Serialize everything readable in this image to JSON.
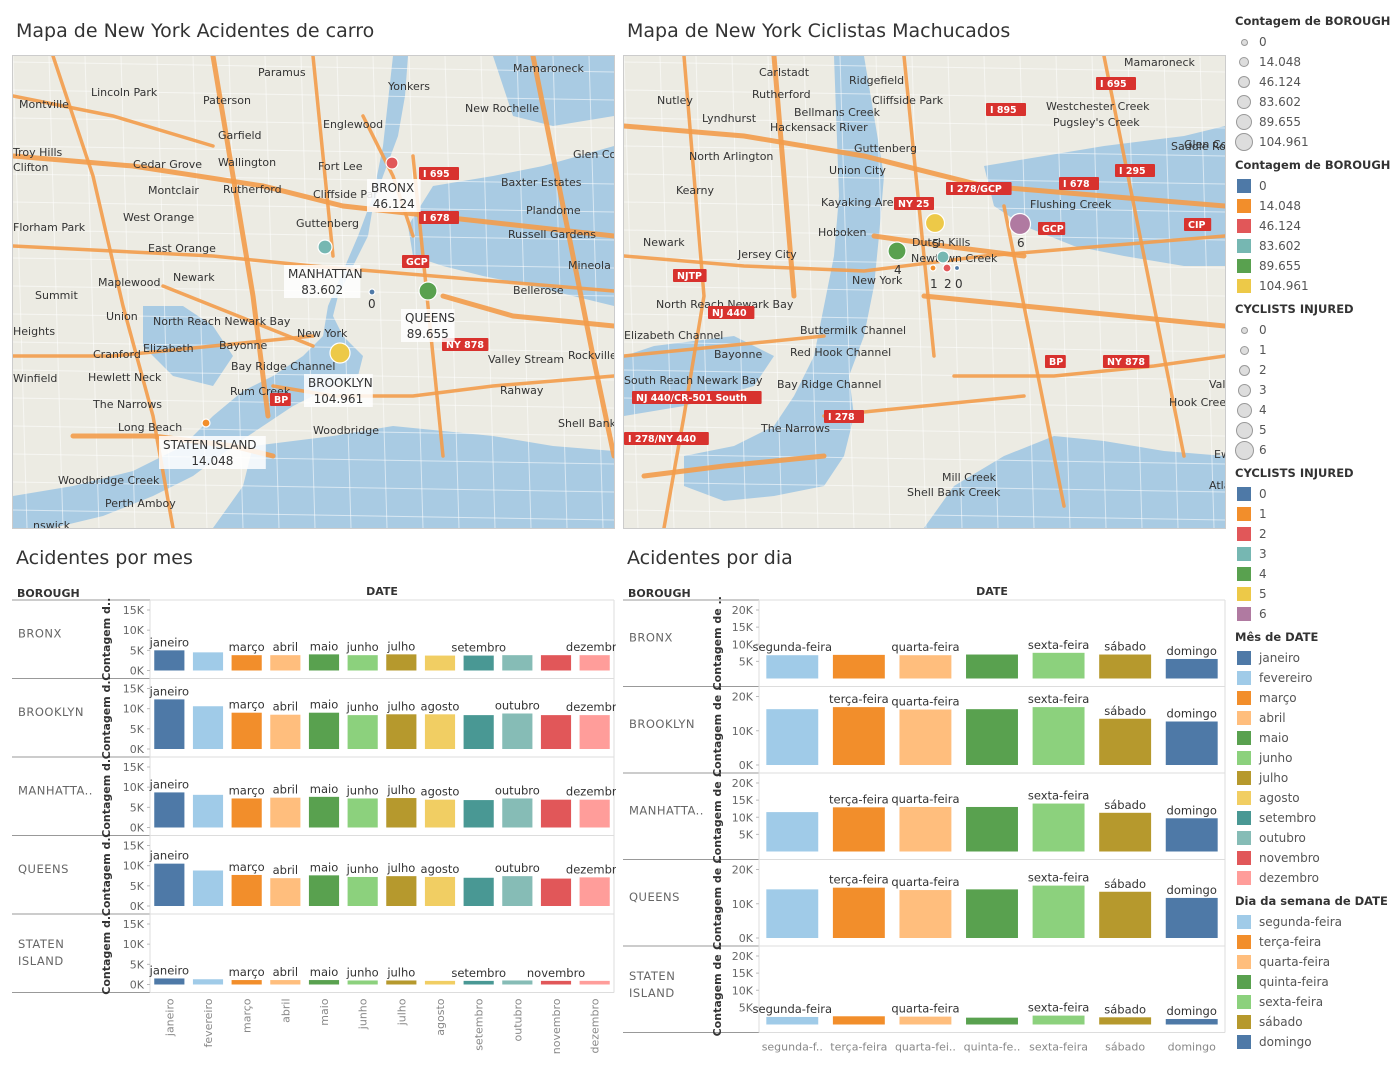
{
  "titles": {
    "map1": "Mapa de New York Acidentes de carro",
    "map2": "Mapa de New York Ciclistas Machucados",
    "month_chart": "Acidentes por mes",
    "day_chart": "Acidentes por dia"
  },
  "map1": {
    "places": [
      "Paramus",
      "Yonkers",
      "Mamaroneck",
      "Montville",
      "Lincoln Park",
      "Paterson",
      "New Rochelle",
      "Garfield",
      "Englewood",
      "Troy Hills",
      "Clifton",
      "Cedar Grove",
      "Wallington",
      "Fort Lee",
      "Glen Co",
      "Montclair",
      "Rutherford",
      "Cliffside Par",
      "Baxter Estates",
      "West Orange",
      "Plandome",
      "Florham Park",
      "Guttenberg",
      "Russell Gardens",
      "East Orange",
      "Mineola",
      "Maplewood",
      "Newark",
      "Summit",
      "Bellerose",
      "Union",
      "North Reach Newark Bay",
      "Heights",
      "Bayonne",
      "Cranford",
      "Elizabeth",
      "Bay Ridge Channel",
      "Valley Stream",
      "Rockville",
      "Winfield",
      "Hewlett Neck",
      "Rahway",
      "The Narrows",
      "Rum Creek",
      "Long Beach",
      "Shell Bank Creek",
      "Woodbridge",
      "Woodbridge Creek",
      "Perth Amboy",
      "nswick",
      "New York"
    ],
    "highways": [
      "I 695",
      "I 678",
      "GCP",
      "NY 878",
      "BP"
    ],
    "bubbles": [
      {
        "name": "BRONX",
        "value": "46.124",
        "color": "#e15759"
      },
      {
        "name": "MANHATTAN",
        "value": "83.602",
        "color": "#76b7b2"
      },
      {
        "name": "QUEENS",
        "value": "89.655",
        "color": "#59a14f"
      },
      {
        "name": "BROOKLYN",
        "value": "104.961",
        "color": "#edc948"
      },
      {
        "name": "STATEN ISLAND",
        "value": "14.048",
        "color": "#f28e2b"
      },
      {
        "name": "",
        "value": "0",
        "color": "#4e79a7"
      }
    ]
  },
  "map2": {
    "places": [
      "Carlstadt",
      "Ridgefield",
      "Mamaroneck",
      "Nutley",
      "Rutherford",
      "Cliffside Park",
      "Lyndhurst",
      "Bellmans Creek",
      "Westchester Creek",
      "Hackensack River",
      "Pugsley's Creek",
      "North Arlington",
      "Guttenberg",
      "Saddle Rock",
      "Union City",
      "Kearny",
      "Kayaking Area",
      "Flushing Creek",
      "Newark",
      "Hoboken",
      "Jersey City",
      "Dutch Kills",
      "Newtown Creek",
      "New York",
      "North Reach Newark Bay",
      "Elizabeth Channel",
      "Buttermilk Channel",
      "Bayonne",
      "Red Hook Channel",
      "South Reach Newark Bay",
      "Bay Ridge Channel",
      "The Narrows",
      "Mill Creek",
      "Shell Bank Creek",
      "Valley Str",
      "Hook Creek",
      "Atlantic",
      "Glen Co",
      "Ew"
    ],
    "highways": [
      "I 895",
      "I 695",
      "I 278/GCP",
      "I 678",
      "I 295",
      "NY 25",
      "GCP",
      "CIP",
      "NJTP",
      "NJ 440",
      "NJ 440/CR-501 South",
      "I 278/NY 440",
      "I 278",
      "BP",
      "NY 878"
    ],
    "bubbles": [
      {
        "value": "4",
        "color": "#59a14f"
      },
      {
        "value": "5",
        "color": "#edc948"
      },
      {
        "value": "6",
        "color": "#b07aa1"
      },
      {
        "value": "1",
        "color": "#f28e2b"
      },
      {
        "value": "2",
        "color": "#e15759"
      },
      {
        "value": "0",
        "color": "#4e79a7"
      },
      {
        "value": "3",
        "color": "#76b7b2"
      }
    ]
  },
  "legend": {
    "size1_title": "Contagem de BOROUGH",
    "size1_items": [
      "0",
      "14.048",
      "46.124",
      "83.602",
      "89.655",
      "104.961"
    ],
    "color1_title": "Contagem de BOROUGH",
    "color1_items": [
      {
        "label": "0",
        "color": "#4e79a7"
      },
      {
        "label": "14.048",
        "color": "#f28e2b"
      },
      {
        "label": "46.124",
        "color": "#e15759"
      },
      {
        "label": "83.602",
        "color": "#76b7b2"
      },
      {
        "label": "89.655",
        "color": "#59a14f"
      },
      {
        "label": "104.961",
        "color": "#edc948"
      }
    ],
    "size2_title": "CYCLISTS INJURED",
    "size2_items": [
      "0",
      "1",
      "2",
      "3",
      "4",
      "5",
      "6"
    ],
    "color2_title": "CYCLISTS INJURED",
    "color2_items": [
      {
        "label": "0",
        "color": "#4e79a7"
      },
      {
        "label": "1",
        "color": "#f28e2b"
      },
      {
        "label": "2",
        "color": "#e15759"
      },
      {
        "label": "3",
        "color": "#76b7b2"
      },
      {
        "label": "4",
        "color": "#59a14f"
      },
      {
        "label": "5",
        "color": "#edc948"
      },
      {
        "label": "6",
        "color": "#b07aa1"
      }
    ],
    "month_title": "Mês de DATE",
    "month_items": [
      {
        "label": "janeiro",
        "color": "#4e79a7"
      },
      {
        "label": "fevereiro",
        "color": "#a0cbe8"
      },
      {
        "label": "março",
        "color": "#f28e2b"
      },
      {
        "label": "abril",
        "color": "#ffbe7d"
      },
      {
        "label": "maio",
        "color": "#59a14f"
      },
      {
        "label": "junho",
        "color": "#8cd17d"
      },
      {
        "label": "julho",
        "color": "#b6992d"
      },
      {
        "label": "agosto",
        "color": "#f1ce63"
      },
      {
        "label": "setembro",
        "color": "#499894"
      },
      {
        "label": "outubro",
        "color": "#86bcb6"
      },
      {
        "label": "novembro",
        "color": "#e15759"
      },
      {
        "label": "dezembro",
        "color": "#ff9d9a"
      }
    ],
    "day_title": "Dia da semana de DATE",
    "day_items": [
      {
        "label": "segunda-feira",
        "color": "#a0cbe8"
      },
      {
        "label": "terça-feira",
        "color": "#f28e2b"
      },
      {
        "label": "quarta-feira",
        "color": "#ffbe7d"
      },
      {
        "label": "quinta-feira",
        "color": "#59a14f"
      },
      {
        "label": "sexta-feira",
        "color": "#8cd17d"
      },
      {
        "label": "sábado",
        "color": "#b6992d"
      },
      {
        "label": "domingo",
        "color": "#4e79a7"
      }
    ]
  },
  "chart_data": [
    {
      "type": "bar",
      "title": "Acidentes por mes",
      "row_header": "BOROUGH",
      "column_header": "DATE",
      "ylabel": "Contagem d..",
      "ylim": [
        0,
        15000
      ],
      "yticks": [
        "0K",
        "5K",
        "10K",
        "15K"
      ],
      "categories": [
        "janeiro",
        "fevereiro",
        "março",
        "abril",
        "maio",
        "junho",
        "julho",
        "agosto",
        "setembro",
        "outubro",
        "novembro",
        "dezembro"
      ],
      "colors": [
        "#4e79a7",
        "#a0cbe8",
        "#f28e2b",
        "#ffbe7d",
        "#59a14f",
        "#8cd17d",
        "#b6992d",
        "#f1ce63",
        "#499894",
        "#86bcb6",
        "#e15759",
        "#ff9d9a"
      ],
      "series": [
        {
          "name": "BRONX",
          "values": [
            5000,
            4500,
            3800,
            3800,
            4000,
            3800,
            4000,
            3700,
            3700,
            3800,
            3800,
            3800
          ],
          "labels": [
            "janeiro",
            "",
            "março",
            "abril",
            "maio",
            "junho",
            "julho",
            "",
            "setembro",
            "",
            "",
            "dezembro"
          ]
        },
        {
          "name": "BROOKLYN",
          "values": [
            12300,
            10600,
            9000,
            8500,
            9000,
            8400,
            8600,
            8600,
            8400,
            8800,
            8400,
            8400
          ],
          "labels": [
            "janeiro",
            "",
            "março",
            "abril",
            "maio",
            "junho",
            "julho",
            "agosto",
            "",
            "outubro",
            "",
            "dezembro"
          ]
        },
        {
          "name": "MANHATTA..",
          "values": [
            8700,
            8100,
            7200,
            7400,
            7600,
            7200,
            7300,
            6900,
            6800,
            7200,
            6900,
            6900
          ],
          "labels": [
            "janeiro",
            "",
            "março",
            "abril",
            "maio",
            "junho",
            "julho",
            "agosto",
            "",
            "outubro",
            "",
            "dezembro"
          ]
        },
        {
          "name": "QUEENS",
          "values": [
            10500,
            8800,
            7700,
            6900,
            7600,
            7200,
            7400,
            7200,
            7000,
            7400,
            6800,
            7100
          ],
          "labels": [
            "janeiro",
            "",
            "março",
            "abril",
            "maio",
            "junho",
            "julho",
            "agosto",
            "",
            "outubro",
            "",
            "dezembro"
          ]
        },
        {
          "name": "STATEN ISLAND",
          "values": [
            1500,
            1300,
            1100,
            1100,
            1100,
            1000,
            1000,
            900,
            900,
            1000,
            900,
            900
          ],
          "labels": [
            "janeiro",
            "",
            "março",
            "abril",
            "maio",
            "junho",
            "julho",
            "",
            "setembro",
            "",
            "novembro",
            ""
          ]
        }
      ]
    },
    {
      "type": "bar",
      "title": "Acidentes por dia",
      "row_header": "BOROUGH",
      "column_header": "DATE",
      "ylabel": "Contagem de ..",
      "categories": [
        "segunda-feira",
        "terça-feira",
        "quarta-feira",
        "quinta-feira",
        "sexta-feira",
        "sábado",
        "domingo"
      ],
      "tick_labels": [
        "segunda-f..",
        "terça-feira",
        "quarta-fei..",
        "quinta-fe..",
        "sexta-feira",
        "sábado",
        "domingo"
      ],
      "colors": [
        "#a0cbe8",
        "#f28e2b",
        "#ffbe7d",
        "#59a14f",
        "#8cd17d",
        "#b6992d",
        "#4e79a7"
      ],
      "series": [
        {
          "name": "BRONX",
          "ylim": [
            0,
            20000
          ],
          "yticks": [
            "5K",
            "10K",
            "15K",
            "20K"
          ],
          "values": [
            6800,
            6900,
            6800,
            7000,
            7500,
            7000,
            5700
          ],
          "labels": [
            "segunda-feira",
            "",
            "quarta-feira",
            "",
            "sexta-feira",
            "sábado",
            "domingo"
          ]
        },
        {
          "name": "BROOKLYN",
          "ylim": [
            0,
            20000
          ],
          "yticks": [
            "0K",
            "10K",
            "20K"
          ],
          "values": [
            16300,
            16900,
            16200,
            16300,
            16900,
            13500,
            12700
          ],
          "labels": [
            "",
            "terça-feira",
            "quarta-feira",
            "",
            "sexta-feira",
            "sábado",
            "domingo"
          ]
        },
        {
          "name": "MANHATTA..",
          "ylim": [
            0,
            20000
          ],
          "yticks": [
            "5K",
            "10K",
            "15K",
            "20K"
          ],
          "values": [
            11500,
            12900,
            13000,
            13000,
            14000,
            11300,
            9700
          ],
          "labels": [
            "",
            "terça-feira",
            "quarta-feira",
            "",
            "sexta-feira",
            "sábado",
            "domingo"
          ]
        },
        {
          "name": "QUEENS",
          "ylim": [
            0,
            20000
          ],
          "yticks": [
            "0K",
            "10K",
            "20K"
          ],
          "values": [
            14200,
            14700,
            14000,
            14200,
            15300,
            13500,
            11700
          ],
          "labels": [
            "",
            "terça-feira",
            "quarta-feira",
            "",
            "sexta-feira",
            "sábado",
            "domingo"
          ]
        },
        {
          "name": "STATEN ISLAND",
          "ylim": [
            0,
            20000
          ],
          "yticks": [
            "5K",
            "10K",
            "15K",
            "20K"
          ],
          "values": [
            2200,
            2400,
            2300,
            2000,
            2600,
            2100,
            1600
          ],
          "labels": [
            "segunda-feira",
            "",
            "quarta-feira",
            "",
            "sexta-feira",
            "sábado",
            "domingo"
          ]
        }
      ]
    }
  ]
}
